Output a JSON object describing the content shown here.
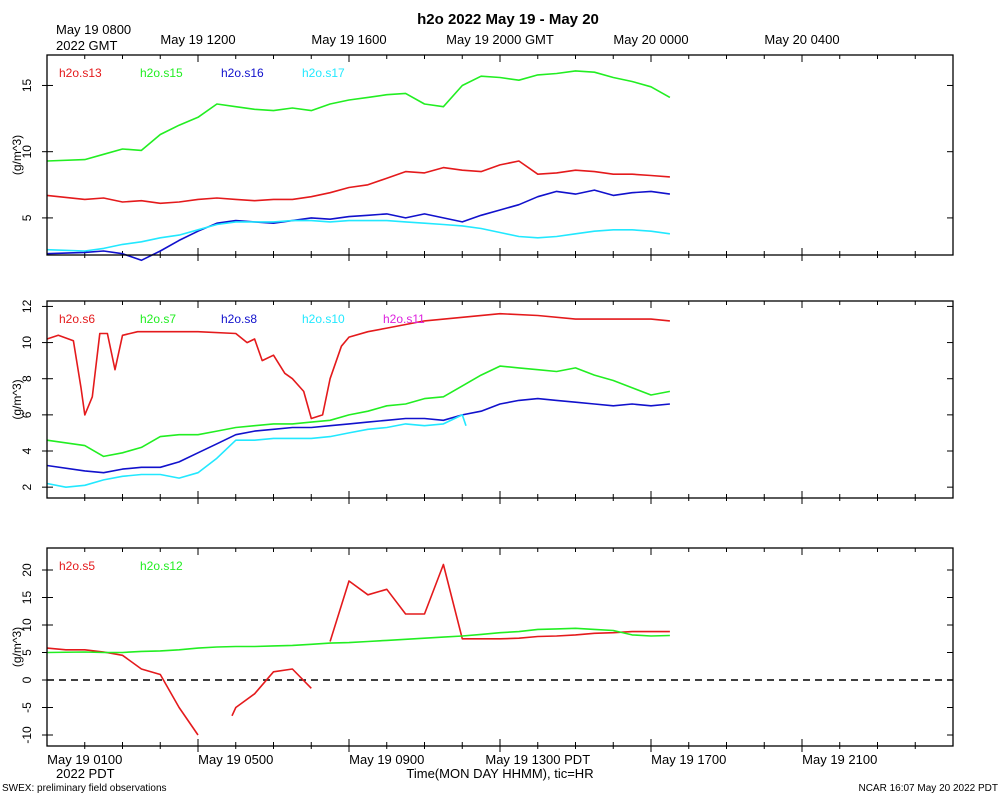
{
  "title": "h2o 2022 May 19 - May 20",
  "top_axis": {
    "first_label_line1": "May 19 0800",
    "first_label_line2": "2022 GMT",
    "labels": [
      "May 19 1200",
      "May 19 1600",
      "May 19 2000 GMT",
      "May 20 0000",
      "May 20 0400"
    ]
  },
  "bottom_axis": {
    "labels": [
      "May 19 0100",
      "May 19 0500",
      "May 19 0900",
      "May 19 1300 PDT",
      "May 19 1700",
      "May 19 2100"
    ],
    "sub_label": "2022 PDT",
    "xlabel": "Time(MON DAY HHMM), tic=HR"
  },
  "footer": {
    "left": "SWEX: preliminary field observations",
    "right": "NCAR 16:07 May 20 2022 PDT"
  },
  "colors": {
    "red": "#e41a1c",
    "green": "#22ee22",
    "blue": "#1111cc",
    "cyan": "#22e8ff",
    "magenta": "#dd22dd"
  },
  "chart_data": [
    {
      "type": "line",
      "x_unit": "hours PDT, May 19",
      "xlim": [
        0,
        24
      ],
      "ylabel": "(g/m^3)",
      "ylim": [
        2.2,
        17.3
      ],
      "yticks": [
        5,
        10,
        15
      ],
      "series": [
        {
          "name": "h2o.s13",
          "color": "red",
          "x": [
            0,
            1,
            1.5,
            2,
            2.5,
            3,
            3.5,
            4,
            4.5,
            5,
            5.5,
            6,
            6.5,
            7,
            7.5,
            8,
            8.5,
            9,
            9.5,
            10,
            10.5,
            11,
            11.5,
            12,
            12.5,
            13,
            13.5,
            14,
            14.5,
            15,
            15.5,
            16,
            16.5
          ],
          "y": [
            6.7,
            6.4,
            6.5,
            6.2,
            6.3,
            6.1,
            6.2,
            6.4,
            6.5,
            6.4,
            6.3,
            6.4,
            6.4,
            6.6,
            6.9,
            7.3,
            7.5,
            8.0,
            8.5,
            8.4,
            8.8,
            8.6,
            8.5,
            9.0,
            9.3,
            8.3,
            8.4,
            8.6,
            8.5,
            8.3,
            8.3,
            8.2,
            8.1
          ]
        },
        {
          "name": "h2o.s15",
          "color": "green",
          "x": [
            0,
            1,
            1.5,
            2,
            2.5,
            3,
            3.5,
            4,
            4.5,
            5,
            5.5,
            6,
            6.5,
            7,
            7.5,
            8,
            8.5,
            9,
            9.5,
            10,
            10.5,
            11,
            11.5,
            12,
            12.5,
            13,
            13.5,
            14,
            14.5,
            15,
            15.5,
            16,
            16.5
          ],
          "y": [
            9.3,
            9.4,
            9.8,
            10.2,
            10.1,
            11.3,
            12.0,
            12.6,
            13.6,
            13.4,
            13.2,
            13.1,
            13.3,
            13.1,
            13.6,
            13.9,
            14.1,
            14.3,
            14.4,
            13.6,
            13.4,
            15.0,
            15.7,
            15.6,
            15.4,
            15.8,
            15.9,
            16.1,
            16.0,
            15.6,
            15.3,
            14.9,
            14.1
          ]
        },
        {
          "name": "h2o.s16",
          "color": "blue",
          "x": [
            0,
            1,
            1.5,
            2,
            2.5,
            3,
            3.5,
            4,
            4.5,
            5,
            5.5,
            6,
            6.5,
            7,
            7.5,
            8,
            8.5,
            9,
            9.5,
            10,
            10.5,
            11,
            11.5,
            12,
            12.5,
            13,
            13.5,
            14,
            14.5,
            15,
            15.5,
            16,
            16.5
          ],
          "y": [
            2.3,
            2.4,
            2.5,
            2.3,
            1.8,
            2.5,
            3.3,
            4.0,
            4.6,
            4.8,
            4.7,
            4.6,
            4.8,
            5.0,
            4.9,
            5.1,
            5.2,
            5.3,
            5.0,
            5.3,
            5.0,
            4.7,
            5.2,
            5.6,
            6.0,
            6.6,
            7.0,
            6.8,
            7.1,
            6.7,
            6.9,
            7.0,
            6.8
          ]
        },
        {
          "name": "h2o.s17",
          "color": "cyan",
          "x": [
            0,
            1,
            1.5,
            2,
            2.5,
            3,
            3.5,
            4,
            4.5,
            5,
            5.5,
            6,
            6.5,
            7,
            7.5,
            8,
            8.5,
            9,
            9.5,
            10,
            10.5,
            11,
            11.5,
            12,
            12.5,
            13,
            13.5,
            14,
            14.5,
            15,
            15.5,
            16,
            16.5
          ],
          "y": [
            2.6,
            2.5,
            2.7,
            3.0,
            3.2,
            3.5,
            3.7,
            4.1,
            4.5,
            4.7,
            4.7,
            4.7,
            4.8,
            4.8,
            4.7,
            4.8,
            4.8,
            4.8,
            4.7,
            4.6,
            4.5,
            4.4,
            4.2,
            3.9,
            3.6,
            3.5,
            3.6,
            3.8,
            4.0,
            4.1,
            4.1,
            4.0,
            3.8
          ]
        }
      ]
    },
    {
      "type": "line",
      "x_unit": "hours PDT, May 19",
      "xlim": [
        0,
        24
      ],
      "ylabel": "(g/m^3)",
      "ylim": [
        1.4,
        12.3
      ],
      "yticks": [
        2,
        4,
        6,
        8,
        10,
        12
      ],
      "series": [
        {
          "name": "h2o.s6",
          "color": "red",
          "x": [
            0,
            0.3,
            0.7,
            0.9,
            1.0,
            1.2,
            1.4,
            1.6,
            1.8,
            2.0,
            2.2,
            2.4,
            3.0,
            4.0,
            5.0,
            5.3,
            5.5,
            5.7,
            6.0,
            6.3,
            6.5,
            6.8,
            7.0,
            7.3,
            7.5,
            7.8,
            8.0,
            8.5,
            9.0,
            10,
            11,
            12,
            13,
            14,
            15,
            16,
            16.5
          ],
          "y": [
            10.2,
            10.4,
            10.1,
            7.5,
            6.0,
            7.0,
            10.5,
            10.5,
            8.5,
            10.4,
            10.5,
            10.6,
            10.6,
            10.6,
            10.5,
            10.0,
            10.2,
            9.0,
            9.3,
            8.3,
            8.0,
            7.3,
            5.8,
            6.0,
            8.0,
            9.8,
            10.3,
            10.6,
            10.8,
            11.2,
            11.4,
            11.6,
            11.5,
            11.3,
            11.3,
            11.3,
            11.2
          ]
        },
        {
          "name": "h2o.s7",
          "color": "green",
          "x": [
            0,
            1,
            1.5,
            2,
            2.5,
            3,
            3.5,
            4,
            4.5,
            5,
            5.5,
            6,
            6.5,
            7,
            7.5,
            8,
            8.5,
            9,
            9.5,
            10,
            10.5,
            11,
            11.5,
            12,
            12.5,
            13,
            13.5,
            14,
            14.5,
            15,
            15.5,
            16,
            16.5
          ],
          "y": [
            4.6,
            4.3,
            3.7,
            3.9,
            4.2,
            4.8,
            4.9,
            4.9,
            5.1,
            5.3,
            5.4,
            5.5,
            5.5,
            5.6,
            5.7,
            6.0,
            6.2,
            6.5,
            6.6,
            6.9,
            7.0,
            7.6,
            8.2,
            8.7,
            8.6,
            8.5,
            8.4,
            8.6,
            8.2,
            7.9,
            7.5,
            7.1,
            7.3
          ]
        },
        {
          "name": "h2o.s8",
          "color": "blue",
          "x": [
            0,
            1,
            1.5,
            2,
            2.5,
            3,
            3.5,
            4,
            4.5,
            5,
            5.5,
            6,
            6.5,
            7,
            7.5,
            8,
            8.5,
            9,
            9.5,
            10,
            10.5,
            11,
            11.5,
            12,
            12.5,
            13,
            13.5,
            14,
            14.5,
            15,
            15.5,
            16,
            16.5
          ],
          "y": [
            3.2,
            2.9,
            2.8,
            3.0,
            3.1,
            3.1,
            3.4,
            3.9,
            4.4,
            4.9,
            5.1,
            5.2,
            5.3,
            5.3,
            5.4,
            5.5,
            5.6,
            5.7,
            5.8,
            5.8,
            5.7,
            6.0,
            6.2,
            6.6,
            6.8,
            6.9,
            6.8,
            6.7,
            6.6,
            6.5,
            6.6,
            6.5,
            6.6
          ]
        },
        {
          "name": "h2o.s10",
          "color": "cyan",
          "x": [
            0,
            0.5,
            1,
            1.5,
            2,
            2.5,
            3,
            3.5,
            4,
            4.5,
            5,
            5.5,
            6,
            6.5,
            7,
            7.5,
            8,
            8.5,
            9,
            9.5,
            10,
            10.5,
            11,
            11.1
          ],
          "y": [
            2.2,
            2.0,
            2.1,
            2.4,
            2.6,
            2.7,
            2.7,
            2.5,
            2.8,
            3.6,
            4.6,
            4.6,
            4.7,
            4.7,
            4.7,
            4.8,
            5.0,
            5.2,
            5.3,
            5.5,
            5.4,
            5.5,
            6.0,
            5.4
          ]
        },
        {
          "name": "h2o.s11",
          "color": "magenta",
          "x": [],
          "y": []
        }
      ]
    },
    {
      "type": "line",
      "x_unit": "hours PDT, May 19",
      "xlim": [
        0,
        24
      ],
      "ylabel": "(g/m^3)",
      "ylim": [
        -12,
        24
      ],
      "yticks": [
        -10,
        -5,
        0,
        5,
        10,
        15,
        20
      ],
      "reference_line": {
        "y": 0,
        "style": "dashed"
      },
      "series": [
        {
          "name": "h2o.s5",
          "color": "red",
          "x": [
            0,
            0.5,
            1,
            1.5,
            2,
            2.5,
            3,
            3.5,
            4,
            4.5,
            null,
            4.9,
            5,
            5.5,
            6,
            6.5,
            7,
            null,
            7.5,
            8,
            8.5,
            9,
            9.5,
            10,
            10.5,
            11,
            11.5,
            12,
            12.5,
            13,
            13.5,
            14,
            14.5,
            15,
            15.5,
            16,
            16.5
          ],
          "y": [
            5.8,
            5.5,
            5.5,
            5.1,
            4.5,
            2.0,
            1.0,
            -5.0,
            -10.0,
            null,
            null,
            -6.5,
            -5.0,
            -2.5,
            1.5,
            2.0,
            -1.5,
            null,
            7.0,
            18.0,
            15.5,
            16.5,
            12.0,
            12.0,
            21.0,
            7.5,
            7.5,
            7.5,
            7.6,
            7.9,
            8.0,
            8.2,
            8.5,
            8.6,
            8.8,
            8.8,
            8.8
          ]
        },
        {
          "name": "h2o.s12",
          "color": "green",
          "x": [
            0,
            1,
            1.5,
            2,
            2.5,
            3,
            3.5,
            4,
            4.5,
            5,
            5.5,
            6,
            6.5,
            7,
            7.5,
            8,
            8.5,
            9,
            9.5,
            10,
            10.5,
            11,
            11.5,
            12,
            12.5,
            13,
            13.5,
            14,
            14.5,
            15,
            15.5,
            16,
            16.5
          ],
          "y": [
            5.0,
            5.1,
            5.0,
            5.0,
            5.2,
            5.3,
            5.5,
            5.8,
            6.0,
            6.1,
            6.1,
            6.2,
            6.3,
            6.5,
            6.7,
            6.8,
            7.0,
            7.2,
            7.4,
            7.6,
            7.8,
            8.0,
            8.3,
            8.6,
            8.8,
            9.2,
            9.3,
            9.4,
            9.2,
            9.0,
            8.2,
            8.0,
            8.1
          ]
        }
      ]
    }
  ]
}
